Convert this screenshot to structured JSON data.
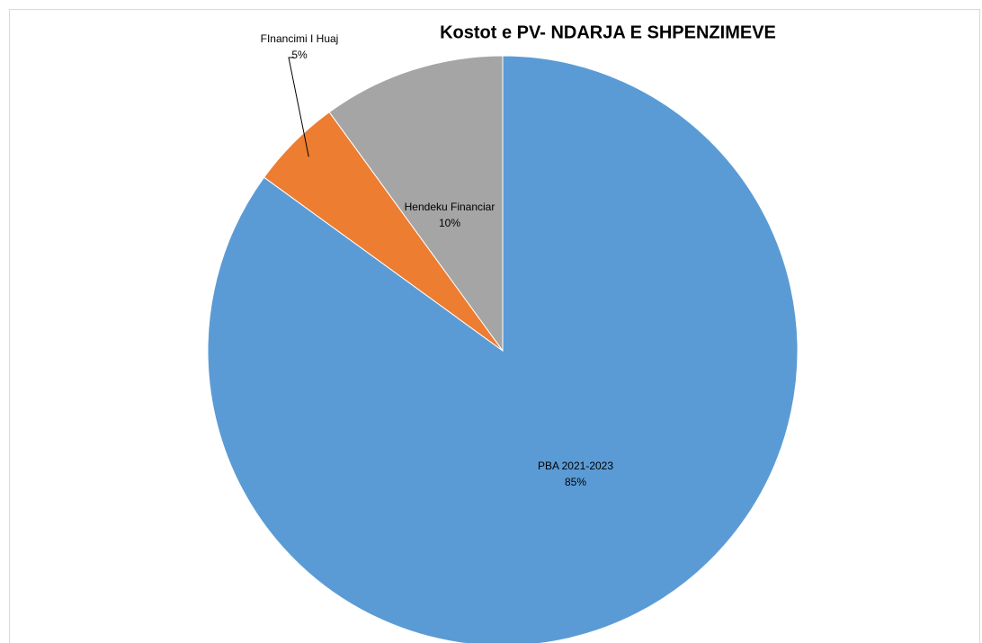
{
  "chart_data": {
    "type": "pie",
    "title": "Kostot e PV- NDARJA E SHPENZIMEVE",
    "categories": [
      "PBA 2021-2023",
      "FInancimi I Huaj",
      "Hendeku Financiar"
    ],
    "values": [
      85,
      5,
      10
    ],
    "value_labels": [
      "85%",
      "5%",
      "10%"
    ],
    "colors": [
      "#5b9bd5",
      "#ed7d31",
      "#a5a5a5"
    ],
    "start_angle": 0,
    "direction": "clockwise"
  }
}
